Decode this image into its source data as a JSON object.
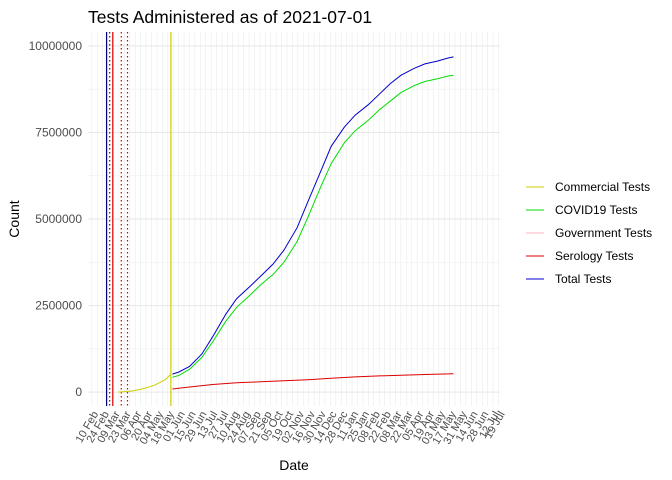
{
  "chart_data": {
    "type": "line",
    "title": "Tests Administered as of 2021-07-01",
    "xlabel": "Date",
    "ylabel": "Count",
    "x_range": [
      "2020-02-05",
      "2021-07-21"
    ],
    "ylim": [
      -400000,
      10400000
    ],
    "y_ticks": [
      {
        "value": 0,
        "label": "0"
      },
      {
        "value": 2500000,
        "label": "2500000"
      },
      {
        "value": 5000000,
        "label": "5000000"
      },
      {
        "value": 7500000,
        "label": "7500000"
      },
      {
        "value": 10000000,
        "label": "10000000"
      }
    ],
    "x_tick_labels": [
      {
        "date": "2020-02-10",
        "label": "10 Feb"
      },
      {
        "date": "2020-02-24",
        "label": "24 Feb"
      },
      {
        "date": "2020-03-09",
        "label": "09 Mar"
      },
      {
        "date": "2020-03-23",
        "label": "23 Mar"
      },
      {
        "date": "2020-04-06",
        "label": "06 Apr"
      },
      {
        "date": "2020-04-20",
        "label": "20 Apr"
      },
      {
        "date": "2020-05-04",
        "label": "04 May"
      },
      {
        "date": "2020-05-18",
        "label": "18 May"
      },
      {
        "date": "2020-06-01",
        "label": "01 Jun"
      },
      {
        "date": "2020-06-15",
        "label": "15 Jun"
      },
      {
        "date": "2020-06-29",
        "label": "29 Jun"
      },
      {
        "date": "2020-07-13",
        "label": "13 Jul"
      },
      {
        "date": "2020-07-27",
        "label": "27 Jul"
      },
      {
        "date": "2020-08-10",
        "label": "10 Aug"
      },
      {
        "date": "2020-08-24",
        "label": "24 Aug"
      },
      {
        "date": "2020-09-07",
        "label": "07 Sep"
      },
      {
        "date": "2020-09-21",
        "label": "21 Sep"
      },
      {
        "date": "2020-10-05",
        "label": "05 Oct"
      },
      {
        "date": "2020-10-19",
        "label": "19 Oct"
      },
      {
        "date": "2020-11-02",
        "label": "02 Nov"
      },
      {
        "date": "2020-11-16",
        "label": "16 Nov"
      },
      {
        "date": "2020-11-30",
        "label": "30 Nov"
      },
      {
        "date": "2020-12-14",
        "label": "14 Dec"
      },
      {
        "date": "2020-12-28",
        "label": "28 Dec"
      },
      {
        "date": "2021-01-11",
        "label": "11 Jan"
      },
      {
        "date": "2021-01-25",
        "label": "25 Jan"
      },
      {
        "date": "2021-02-08",
        "label": "08 Feb"
      },
      {
        "date": "2021-02-22",
        "label": "22 Feb"
      },
      {
        "date": "2021-03-08",
        "label": "08 Mar"
      },
      {
        "date": "2021-03-22",
        "label": "22 Mar"
      },
      {
        "date": "2021-04-05",
        "label": "05 Apr"
      },
      {
        "date": "2021-04-19",
        "label": "19 Apr"
      },
      {
        "date": "2021-05-03",
        "label": "03 May"
      },
      {
        "date": "2021-05-17",
        "label": "17 May"
      },
      {
        "date": "2021-05-31",
        "label": "31 May"
      },
      {
        "date": "2021-06-14",
        "label": "14 Jun"
      },
      {
        "date": "2021-06-28",
        "label": "28 Jun"
      },
      {
        "date": "2021-07-12",
        "label": "12 Jul"
      },
      {
        "date": "2021-07-19",
        "label": "19 Jul"
      }
    ],
    "grid": true,
    "legend_position": "right",
    "series": [
      {
        "name": "Commercial Tests",
        "color": "#cccc00",
        "points": [
          [
            "2020-03-15",
            0
          ],
          [
            "2020-04-01",
            30000
          ],
          [
            "2020-04-15",
            90000
          ],
          [
            "2020-05-01",
            200000
          ],
          [
            "2020-05-15",
            360000
          ],
          [
            "2020-05-22",
            520000
          ]
        ]
      },
      {
        "name": "COVID19 Tests",
        "color": "#00dd00",
        "points": [
          [
            "2020-05-24",
            430000
          ],
          [
            "2020-06-01",
            480000
          ],
          [
            "2020-06-15",
            660000
          ],
          [
            "2020-07-01",
            1000000
          ],
          [
            "2020-07-15",
            1450000
          ],
          [
            "2020-08-01",
            2050000
          ],
          [
            "2020-08-15",
            2450000
          ],
          [
            "2020-09-01",
            2800000
          ],
          [
            "2020-09-15",
            3100000
          ],
          [
            "2020-10-01",
            3400000
          ],
          [
            "2020-10-15",
            3750000
          ],
          [
            "2020-11-01",
            4350000
          ],
          [
            "2020-11-15",
            5050000
          ],
          [
            "2020-12-01",
            5900000
          ],
          [
            "2020-12-15",
            6600000
          ],
          [
            "2021-01-01",
            7200000
          ],
          [
            "2021-01-15",
            7550000
          ],
          [
            "2021-02-01",
            7850000
          ],
          [
            "2021-02-15",
            8150000
          ],
          [
            "2021-03-01",
            8400000
          ],
          [
            "2021-03-15",
            8650000
          ],
          [
            "2021-04-01",
            8850000
          ],
          [
            "2021-04-15",
            8970000
          ],
          [
            "2021-05-01",
            9050000
          ],
          [
            "2021-05-15",
            9130000
          ],
          [
            "2021-05-22",
            9150000
          ]
        ]
      },
      {
        "name": "Government Tests",
        "color": "#ffb6c1",
        "points": []
      },
      {
        "name": "Serology Tests",
        "color": "#dd0000",
        "points": [
          [
            "2020-05-24",
            90000
          ],
          [
            "2020-06-15",
            150000
          ],
          [
            "2020-07-15",
            220000
          ],
          [
            "2020-08-15",
            270000
          ],
          [
            "2020-09-15",
            300000
          ],
          [
            "2020-10-15",
            330000
          ],
          [
            "2020-11-15",
            360000
          ],
          [
            "2020-12-15",
            400000
          ],
          [
            "2021-01-15",
            440000
          ],
          [
            "2021-02-15",
            470000
          ],
          [
            "2021-03-15",
            490000
          ],
          [
            "2021-04-15",
            510000
          ],
          [
            "2021-05-22",
            530000
          ]
        ]
      },
      {
        "name": "Total Tests",
        "color": "#0000cc",
        "points": [
          [
            "2020-05-24",
            520000
          ],
          [
            "2020-06-01",
            580000
          ],
          [
            "2020-06-15",
            740000
          ],
          [
            "2020-07-01",
            1100000
          ],
          [
            "2020-07-15",
            1600000
          ],
          [
            "2020-08-01",
            2250000
          ],
          [
            "2020-08-15",
            2700000
          ],
          [
            "2020-09-01",
            3050000
          ],
          [
            "2020-09-15",
            3350000
          ],
          [
            "2020-10-01",
            3700000
          ],
          [
            "2020-10-15",
            4100000
          ],
          [
            "2020-11-01",
            4750000
          ],
          [
            "2020-11-15",
            5500000
          ],
          [
            "2020-12-01",
            6350000
          ],
          [
            "2020-12-15",
            7100000
          ],
          [
            "2021-01-01",
            7650000
          ],
          [
            "2021-01-15",
            8000000
          ],
          [
            "2021-02-01",
            8300000
          ],
          [
            "2021-02-15",
            8600000
          ],
          [
            "2021-03-01",
            8900000
          ],
          [
            "2021-03-15",
            9150000
          ],
          [
            "2021-04-01",
            9350000
          ],
          [
            "2021-04-15",
            9480000
          ],
          [
            "2021-05-01",
            9560000
          ],
          [
            "2021-05-15",
            9650000
          ],
          [
            "2021-05-22",
            9680000
          ]
        ]
      }
    ],
    "vlines": [
      {
        "date": "2020-02-29",
        "color": "#000080",
        "dash": "solid"
      },
      {
        "date": "2020-03-04",
        "color": "#8b0000",
        "dash": "dotted"
      },
      {
        "date": "2020-03-08",
        "color": "#dd0000",
        "dash": "solid"
      },
      {
        "date": "2020-03-19",
        "color": "#dd0000",
        "dash": "dotted"
      },
      {
        "date": "2020-03-27",
        "color": "#dd0000",
        "dash": "dotted"
      },
      {
        "date": "2020-05-22",
        "color": "#cccc00",
        "dash": "solid"
      }
    ]
  }
}
